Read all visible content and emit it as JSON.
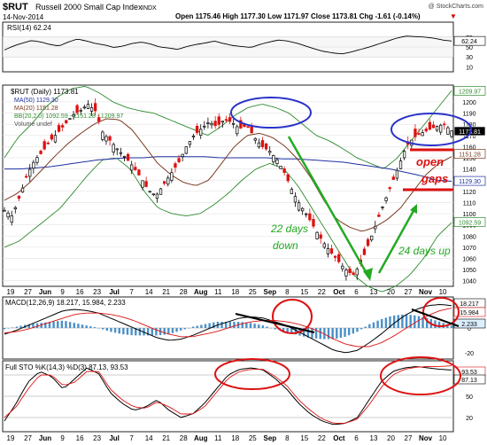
{
  "header": {
    "symbol": "$RUT",
    "name": "Russell 2000 Small Cap Index",
    "exchange": "INDX",
    "watermark": "@ StockCharts.com",
    "date": "14-Nov-2014",
    "quote": "Open 1175.46  High 1177.30  Low 1171.97  Close 1173.81  Chg -1.61 (-0.14%)",
    "chg_arrow": "▼"
  },
  "rsi": {
    "label": "RSI(14) 62.24",
    "ticks": [
      "70",
      "50",
      "30",
      "10"
    ],
    "right_tag": "62.24",
    "ylim": [
      0,
      100
    ],
    "values": [
      44,
      52,
      58,
      63,
      60,
      55,
      52,
      60,
      66,
      62,
      57,
      54,
      49,
      52,
      57,
      60,
      56,
      50,
      48,
      45,
      51,
      55,
      58,
      62,
      57,
      53,
      51,
      49,
      55,
      60,
      64,
      62,
      58,
      52,
      46,
      41,
      38,
      36,
      40,
      45,
      50,
      56,
      62,
      68,
      72,
      71,
      70,
      68,
      64,
      62
    ]
  },
  "price": {
    "title": "$RUT (Daily) 1173.81",
    "legend": [
      {
        "text": "MA(50) 1129.30",
        "color": "#1f2fa0"
      },
      {
        "text": "MA(20) 1151.28",
        "color": "#7a3a20"
      },
      {
        "text": "BB(20,2.0) 1092.59 - 1151.28 - 1209.97",
        "color": "#2e8b2e"
      },
      {
        "text": "Volume undef",
        "color": "#555555"
      }
    ],
    "y_ticks": [
      "1200",
      "1190",
      "1180",
      "1170",
      "1160",
      "1150",
      "1140",
      "1130",
      "1120",
      "1110",
      "1100",
      "1090",
      "1080",
      "1070",
      "1060",
      "1050",
      "1040"
    ],
    "tags": [
      {
        "value": "1209.97",
        "price": 1209.97,
        "bg": "#ffffff",
        "color": "#2e8b2e"
      },
      {
        "value": "1173.81",
        "price": 1173.81,
        "bg": "#000000",
        "color": "#ffffff"
      },
      {
        "value": "1151.28",
        "price": 1153.5,
        "bg": "#ffffff",
        "color": "#7a3a20"
      },
      {
        "value": "1129.30",
        "price": 1129.3,
        "bg": "#ffffff",
        "color": "#1f2fa0"
      },
      {
        "value": "1092.59",
        "price": 1092.59,
        "bg": "#ffffff",
        "color": "#2e8b2e"
      }
    ],
    "annotations": {
      "down": [
        "22 days",
        "down"
      ],
      "up": "24 days up",
      "gaps": [
        "open",
        "gaps"
      ]
    }
  },
  "x_axis": {
    "labels": [
      "19",
      "27",
      "Jun",
      "9",
      "16",
      "23",
      "Jul",
      "7",
      "14",
      "21",
      "28",
      "Aug",
      "11",
      "18",
      "25",
      "Sep",
      "8",
      "15",
      "22",
      "Oct",
      "6",
      "13",
      "20",
      "27",
      "Nov",
      "10"
    ],
    "bold": [
      "Jun",
      "Jul",
      "Aug",
      "Sep",
      "Oct",
      "Nov"
    ]
  },
  "macd": {
    "label": "MACD(12,26,9) 18.217, 15.984, 2.233",
    "tags": [
      "18.217",
      "15.984",
      "2.233"
    ],
    "ticks": [
      "20",
      "0",
      "-20"
    ]
  },
  "sto": {
    "label": "Full STO %K(14,3) %D(3) 87.13, 93.53",
    "tags": [
      "93.53",
      "87.13"
    ],
    "ticks": [
      "80",
      "50",
      "20"
    ]
  },
  "chart_data": {
    "type": "candlestick",
    "title": "$RUT (Daily) 1173.81",
    "ylim": [
      1035,
      1215
    ],
    "price_path": [
      1103,
      1098,
      1115,
      1135,
      1148,
      1155,
      1165,
      1172,
      1180,
      1188,
      1192,
      1198,
      1192,
      1172,
      1165,
      1157,
      1150,
      1142,
      1132,
      1121,
      1116,
      1126,
      1136,
      1146,
      1160,
      1170,
      1176,
      1182,
      1178,
      1184,
      1182,
      1176,
      1179,
      1168,
      1160,
      1156,
      1148,
      1136,
      1120,
      1108,
      1098,
      1086,
      1075,
      1066,
      1058,
      1050,
      1045,
      1055,
      1072,
      1090,
      1108,
      1125,
      1142,
      1160,
      1168,
      1172,
      1175,
      1178,
      1180,
      1174
    ],
    "ma50": [
      1140,
      1140,
      1141,
      1142,
      1144,
      1146,
      1148,
      1149,
      1150,
      1150,
      1151,
      1151,
      1151,
      1151,
      1150,
      1150,
      1150,
      1150,
      1149,
      1149,
      1148,
      1147,
      1146,
      1144,
      1142,
      1140,
      1137,
      1134,
      1130,
      1129
    ],
    "ma20": [
      1112,
      1118,
      1128,
      1140,
      1152,
      1163,
      1172,
      1180,
      1185,
      1184,
      1175,
      1160,
      1145,
      1135,
      1128,
      1125,
      1130,
      1145,
      1160,
      1170,
      1172,
      1168,
      1160,
      1148,
      1132,
      1112,
      1095,
      1088,
      1084,
      1088,
      1095,
      1105,
      1120,
      1135,
      1145,
      1151
    ],
    "bb_upper": [
      1150,
      1168,
      1180,
      1195,
      1205,
      1212,
      1214,
      1208,
      1200,
      1195,
      1192,
      1190,
      1185,
      1180,
      1175,
      1170,
      1178,
      1188,
      1195,
      1198,
      1195,
      1190,
      1180,
      1170,
      1165,
      1158,
      1150,
      1145,
      1140,
      1150,
      1165,
      1180,
      1195,
      1210
    ],
    "bb_lower": [
      1070,
      1075,
      1085,
      1095,
      1105,
      1120,
      1135,
      1148,
      1150,
      1140,
      1120,
      1105,
      1100,
      1098,
      1100,
      1108,
      1118,
      1130,
      1140,
      1145,
      1140,
      1125,
      1105,
      1085,
      1065,
      1045,
      1035,
      1030,
      1035,
      1045,
      1060,
      1080,
      1092
    ],
    "x_labels": [
      "19",
      "27",
      "Jun",
      "9",
      "16",
      "23",
      "Jul",
      "7",
      "14",
      "21",
      "28",
      "Aug",
      "11",
      "18",
      "25",
      "Sep",
      "8",
      "15",
      "22",
      "Oct",
      "6",
      "13",
      "20",
      "27",
      "Nov",
      "10"
    ]
  },
  "macd_data": {
    "ylim": [
      -25,
      25
    ],
    "macd": [
      -5,
      -2,
      2,
      6,
      10,
      14,
      15,
      14,
      12,
      8,
      4,
      0,
      -4,
      -8,
      -10,
      -9,
      -6,
      -2,
      2,
      5,
      8,
      9,
      8,
      5,
      2,
      -3,
      -8,
      -13,
      -18,
      -20,
      -18,
      -12,
      -5,
      3,
      10,
      15,
      18,
      19,
      18
    ],
    "signal": [
      -4,
      -3,
      -1,
      2,
      5,
      8,
      11,
      12,
      12,
      11,
      9,
      6,
      2,
      -2,
      -5,
      -7,
      -7,
      -5,
      -3,
      0,
      3,
      5,
      6,
      6,
      5,
      3,
      0,
      -4,
      -9,
      -13,
      -15,
      -15,
      -12,
      -7,
      -1,
      5,
      10,
      14,
      16
    ]
  },
  "sto_data": {
    "ylim": [
      0,
      100
    ],
    "k": [
      15,
      40,
      70,
      85,
      78,
      60,
      75,
      90,
      82,
      55,
      40,
      30,
      35,
      45,
      30,
      20,
      25,
      40,
      60,
      80,
      88,
      90,
      87,
      75,
      60,
      40,
      25,
      15,
      10,
      12,
      20,
      45,
      70,
      85,
      90,
      92,
      90,
      88,
      87
    ],
    "d": [
      20,
      35,
      60,
      80,
      80,
      65,
      70,
      85,
      85,
      60,
      45,
      35,
      33,
      42,
      35,
      25,
      25,
      35,
      55,
      75,
      85,
      88,
      88,
      78,
      65,
      45,
      30,
      18,
      12,
      12,
      18,
      38,
      62,
      80,
      88,
      91,
      92,
      92,
      93
    ]
  }
}
